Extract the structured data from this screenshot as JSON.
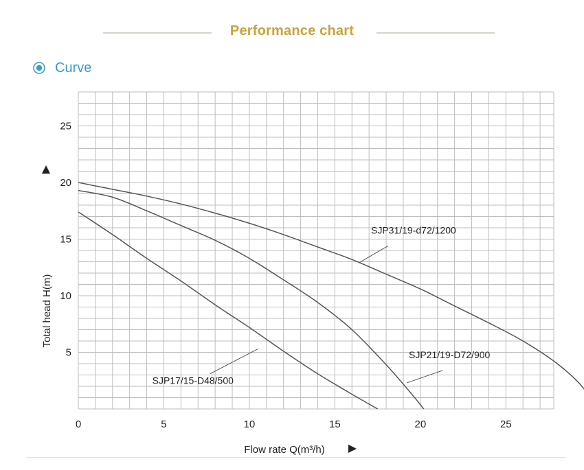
{
  "header": {
    "title": "Performance chart"
  },
  "section": {
    "label": "Curve",
    "icon": "target-circle-icon",
    "accent": "#3a9bd0"
  },
  "colors": {
    "title": "#c9a23a",
    "grid": "#bdbdbd",
    "curve": "#555555"
  },
  "chart_data": {
    "type": "line",
    "xlabel": "Flow rate Q(m³/h)",
    "ylabel": "Total head H(m)",
    "xlim": [
      0,
      27.8
    ],
    "ylim": [
      0,
      28
    ],
    "xticks": [
      0,
      5,
      10,
      15,
      20,
      25,
      30
    ],
    "yticks": [
      5,
      10,
      15,
      20,
      25
    ],
    "grid": true,
    "series": [
      {
        "name": "SJP17/15-D48/500",
        "x": [
          0,
          2,
          4,
          6,
          8,
          10,
          12,
          14,
          16,
          17.5
        ],
        "y": [
          17.4,
          15.4,
          13.3,
          11.3,
          9.2,
          7.2,
          5.1,
          3.1,
          1.3,
          0
        ]
      },
      {
        "name": "SJP21/19-D72/900",
        "x": [
          0,
          2,
          4,
          6,
          8,
          10,
          12,
          14,
          16,
          18,
          19.5,
          20.2
        ],
        "y": [
          19.3,
          18.7,
          17.5,
          16.2,
          14.9,
          13.3,
          11.4,
          9.4,
          7.0,
          3.9,
          1.3,
          0
        ]
      },
      {
        "name": "SJP31/19-d72/1200",
        "x": [
          0,
          2,
          4,
          6,
          8,
          10,
          12,
          14,
          16,
          18,
          20,
          22,
          24,
          26,
          28,
          29.5,
          30.2
        ],
        "y": [
          20.0,
          19.4,
          18.8,
          18.1,
          17.3,
          16.4,
          15.4,
          14.3,
          13.2,
          11.9,
          10.6,
          9.1,
          7.6,
          6.0,
          4.0,
          1.9,
          0
        ]
      }
    ]
  }
}
